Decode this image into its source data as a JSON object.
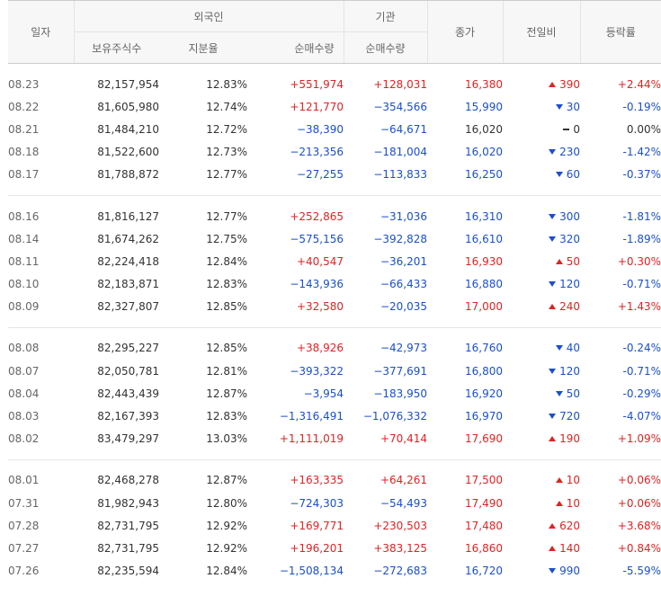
{
  "header": {
    "date": "일자",
    "foreign": "외국인",
    "institution": "기관",
    "close": "종가",
    "change": "전일비",
    "rate": "등락률",
    "holdings": "보유주식수",
    "share_ratio": "지분율",
    "foreign_net": "순매수량",
    "inst_net": "순매수량"
  },
  "colors": {
    "up": "#e12222",
    "down": "#1a4fce",
    "flat": "#333333"
  },
  "groups": [
    [
      {
        "date": "08.23",
        "holdings": "82,157,954",
        "ratio": "12.83%",
        "foreign_net": "+551,974",
        "foreign_dir": "up",
        "inst_net": "+128,031",
        "inst_dir": "up",
        "close": "16,380",
        "close_dir": "up",
        "change": "390",
        "change_dir": "up",
        "rate": "+2.44%",
        "rate_dir": "up"
      },
      {
        "date": "08.22",
        "holdings": "81,605,980",
        "ratio": "12.74%",
        "foreign_net": "+121,770",
        "foreign_dir": "up",
        "inst_net": "−354,566",
        "inst_dir": "down",
        "close": "15,990",
        "close_dir": "down",
        "change": "30",
        "change_dir": "down",
        "rate": "-0.19%",
        "rate_dir": "down"
      },
      {
        "date": "08.21",
        "holdings": "81,484,210",
        "ratio": "12.72%",
        "foreign_net": "−38,390",
        "foreign_dir": "down",
        "inst_net": "−64,671",
        "inst_dir": "down",
        "close": "16,020",
        "close_dir": "flat",
        "change": "0",
        "change_dir": "flat",
        "rate": "0.00%",
        "rate_dir": "flat"
      },
      {
        "date": "08.18",
        "holdings": "81,522,600",
        "ratio": "12.73%",
        "foreign_net": "−213,356",
        "foreign_dir": "down",
        "inst_net": "−181,004",
        "inst_dir": "down",
        "close": "16,020",
        "close_dir": "down",
        "change": "230",
        "change_dir": "down",
        "rate": "-1.42%",
        "rate_dir": "down"
      },
      {
        "date": "08.17",
        "holdings": "81,788,872",
        "ratio": "12.77%",
        "foreign_net": "−27,255",
        "foreign_dir": "down",
        "inst_net": "−113,833",
        "inst_dir": "down",
        "close": "16,250",
        "close_dir": "down",
        "change": "60",
        "change_dir": "down",
        "rate": "-0.37%",
        "rate_dir": "down"
      }
    ],
    [
      {
        "date": "08.16",
        "holdings": "81,816,127",
        "ratio": "12.77%",
        "foreign_net": "+252,865",
        "foreign_dir": "up",
        "inst_net": "−31,036",
        "inst_dir": "down",
        "close": "16,310",
        "close_dir": "down",
        "change": "300",
        "change_dir": "down",
        "rate": "-1.81%",
        "rate_dir": "down"
      },
      {
        "date": "08.14",
        "holdings": "81,674,262",
        "ratio": "12.75%",
        "foreign_net": "−575,156",
        "foreign_dir": "down",
        "inst_net": "−392,828",
        "inst_dir": "down",
        "close": "16,610",
        "close_dir": "down",
        "change": "320",
        "change_dir": "down",
        "rate": "-1.89%",
        "rate_dir": "down"
      },
      {
        "date": "08.11",
        "holdings": "82,224,418",
        "ratio": "12.84%",
        "foreign_net": "+40,547",
        "foreign_dir": "up",
        "inst_net": "−36,201",
        "inst_dir": "down",
        "close": "16,930",
        "close_dir": "up",
        "change": "50",
        "change_dir": "up",
        "rate": "+0.30%",
        "rate_dir": "up"
      },
      {
        "date": "08.10",
        "holdings": "82,183,871",
        "ratio": "12.83%",
        "foreign_net": "−143,936",
        "foreign_dir": "down",
        "inst_net": "−66,433",
        "inst_dir": "down",
        "close": "16,880",
        "close_dir": "down",
        "change": "120",
        "change_dir": "down",
        "rate": "-0.71%",
        "rate_dir": "down"
      },
      {
        "date": "08.09",
        "holdings": "82,327,807",
        "ratio": "12.85%",
        "foreign_net": "+32,580",
        "foreign_dir": "up",
        "inst_net": "−20,035",
        "inst_dir": "down",
        "close": "17,000",
        "close_dir": "up",
        "change": "240",
        "change_dir": "up",
        "rate": "+1.43%",
        "rate_dir": "up"
      }
    ],
    [
      {
        "date": "08.08",
        "holdings": "82,295,227",
        "ratio": "12.85%",
        "foreign_net": "+38,926",
        "foreign_dir": "up",
        "inst_net": "−42,973",
        "inst_dir": "down",
        "close": "16,760",
        "close_dir": "down",
        "change": "40",
        "change_dir": "down",
        "rate": "-0.24%",
        "rate_dir": "down"
      },
      {
        "date": "08.07",
        "holdings": "82,050,781",
        "ratio": "12.81%",
        "foreign_net": "−393,322",
        "foreign_dir": "down",
        "inst_net": "−377,691",
        "inst_dir": "down",
        "close": "16,800",
        "close_dir": "down",
        "change": "120",
        "change_dir": "down",
        "rate": "-0.71%",
        "rate_dir": "down"
      },
      {
        "date": "08.04",
        "holdings": "82,443,439",
        "ratio": "12.87%",
        "foreign_net": "−3,954",
        "foreign_dir": "down",
        "inst_net": "−183,950",
        "inst_dir": "down",
        "close": "16,920",
        "close_dir": "down",
        "change": "50",
        "change_dir": "down",
        "rate": "-0.29%",
        "rate_dir": "down"
      },
      {
        "date": "08.03",
        "holdings": "82,167,393",
        "ratio": "12.83%",
        "foreign_net": "−1,316,491",
        "foreign_dir": "down",
        "inst_net": "−1,076,332",
        "inst_dir": "down",
        "close": "16,970",
        "close_dir": "down",
        "change": "720",
        "change_dir": "down",
        "rate": "-4.07%",
        "rate_dir": "down"
      },
      {
        "date": "08.02",
        "holdings": "83,479,297",
        "ratio": "13.03%",
        "foreign_net": "+1,111,019",
        "foreign_dir": "up",
        "inst_net": "+70,414",
        "inst_dir": "up",
        "close": "17,690",
        "close_dir": "up",
        "change": "190",
        "change_dir": "up",
        "rate": "+1.09%",
        "rate_dir": "up"
      }
    ],
    [
      {
        "date": "08.01",
        "holdings": "82,468,278",
        "ratio": "12.87%",
        "foreign_net": "+163,335",
        "foreign_dir": "up",
        "inst_net": "+64,261",
        "inst_dir": "up",
        "close": "17,500",
        "close_dir": "up",
        "change": "10",
        "change_dir": "up",
        "rate": "+0.06%",
        "rate_dir": "up"
      },
      {
        "date": "07.31",
        "holdings": "81,982,943",
        "ratio": "12.80%",
        "foreign_net": "−724,303",
        "foreign_dir": "down",
        "inst_net": "−54,493",
        "inst_dir": "down",
        "close": "17,490",
        "close_dir": "up",
        "change": "10",
        "change_dir": "up",
        "rate": "+0.06%",
        "rate_dir": "up"
      },
      {
        "date": "07.28",
        "holdings": "82,731,795",
        "ratio": "12.92%",
        "foreign_net": "+169,771",
        "foreign_dir": "up",
        "inst_net": "+230,503",
        "inst_dir": "up",
        "close": "17,480",
        "close_dir": "up",
        "change": "620",
        "change_dir": "up",
        "rate": "+3.68%",
        "rate_dir": "up"
      },
      {
        "date": "07.27",
        "holdings": "82,731,795",
        "ratio": "12.92%",
        "foreign_net": "+196,201",
        "foreign_dir": "up",
        "inst_net": "+383,125",
        "inst_dir": "up",
        "close": "16,860",
        "close_dir": "up",
        "change": "140",
        "change_dir": "up",
        "rate": "+0.84%",
        "rate_dir": "up"
      },
      {
        "date": "07.26",
        "holdings": "82,235,594",
        "ratio": "12.84%",
        "foreign_net": "−1,508,134",
        "foreign_dir": "down",
        "inst_net": "−272,683",
        "inst_dir": "down",
        "close": "16,720",
        "close_dir": "down",
        "change": "990",
        "change_dir": "down",
        "rate": "-5.59%",
        "rate_dir": "down"
      }
    ]
  ]
}
